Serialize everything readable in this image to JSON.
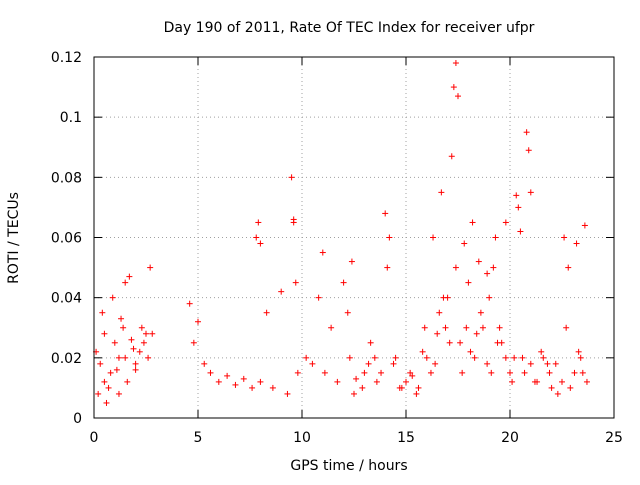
{
  "chart_data": {
    "type": "scatter",
    "title": "Day 190 of 2011, Rate Of TEC Index for receiver ufpr",
    "xlabel": "GPS time / hours",
    "ylabel": "ROTI / TECUs",
    "xlim": [
      0,
      25
    ],
    "ylim": [
      0,
      0.12
    ],
    "x_ticks": [
      0,
      5,
      10,
      15,
      20,
      25
    ],
    "x_tick_labels": [
      "0",
      "5",
      "10",
      "15",
      "20",
      "25"
    ],
    "y_ticks": [
      0,
      0.02,
      0.04,
      0.06,
      0.08,
      0.1,
      0.12
    ],
    "y_tick_labels": [
      "0",
      "0.02",
      "0.04",
      "0.06",
      "0.08",
      "0.1",
      "0.12"
    ],
    "grid": true,
    "marker": "+",
    "series": [
      {
        "name": "ROTI",
        "color": "#ff0000",
        "x": [
          0.1,
          0.3,
          0.5,
          0.8,
          1.0,
          1.2,
          1.4,
          1.6,
          1.8,
          2.0,
          2.2,
          2.4,
          2.6,
          0.2,
          0.4,
          0.7,
          0.9,
          1.1,
          1.5,
          1.9,
          2.3,
          2.7,
          0.6,
          1.3,
          1.7,
          2.5,
          4.6,
          4.8,
          5.0,
          5.3,
          5.6,
          6.0,
          6.4,
          6.8,
          7.2,
          7.6,
          7.8,
          8.0,
          8.3,
          8.6,
          9.0,
          9.3,
          9.6,
          9.8,
          10.2,
          10.5,
          10.8,
          11.1,
          11.4,
          11.7,
          12.0,
          12.3,
          12.6,
          12.9,
          13.2,
          13.5,
          13.8,
          14.1,
          14.4,
          14.7,
          15.0,
          15.3,
          15.6,
          15.9,
          16.2,
          16.5,
          16.8,
          17.1,
          17.4,
          17.7,
          18.0,
          18.3,
          18.6,
          18.9,
          19.2,
          19.5,
          19.8,
          20.1,
          20.4,
          20.7,
          21.0,
          21.3,
          21.6,
          21.9,
          22.2,
          22.5,
          22.8,
          23.1,
          23.4,
          23.7,
          7.9,
          8.0,
          9.5,
          9.6,
          9.7,
          11.0,
          12.4,
          14.0,
          14.2,
          16.3,
          16.7,
          17.2,
          17.3,
          17.4,
          17.5,
          17.8,
          18.2,
          18.5,
          18.9,
          19.3,
          19.8,
          20.3,
          20.5,
          20.8,
          20.9,
          21.0,
          22.6,
          23.2,
          23.6,
          0.5,
          1.2,
          1.5,
          2.0,
          2.8,
          12.5,
          13.0,
          13.6,
          14.8,
          15.5,
          16.0,
          16.4,
          16.9,
          17.6,
          18.1,
          18.7,
          19.1,
          19.6,
          20.0,
          20.6,
          21.2,
          21.8,
          22.3,
          22.9,
          23.5,
          12.2,
          13.3,
          14.5,
          15.2,
          15.8,
          16.6,
          17.0,
          17.9,
          18.4,
          19.0,
          19.4,
          20.2,
          21.5,
          22.0,
          22.7,
          23.3
        ],
        "y": [
          0.022,
          0.018,
          0.028,
          0.015,
          0.025,
          0.02,
          0.03,
          0.012,
          0.026,
          0.018,
          0.022,
          0.025,
          0.02,
          0.008,
          0.035,
          0.01,
          0.04,
          0.016,
          0.045,
          0.023,
          0.03,
          0.05,
          0.005,
          0.033,
          0.047,
          0.028,
          0.038,
          0.025,
          0.032,
          0.018,
          0.015,
          0.012,
          0.014,
          0.011,
          0.013,
          0.01,
          0.06,
          0.012,
          0.035,
          0.01,
          0.042,
          0.008,
          0.065,
          0.015,
          0.02,
          0.018,
          0.04,
          0.015,
          0.03,
          0.012,
          0.045,
          0.02,
          0.013,
          0.01,
          0.018,
          0.02,
          0.015,
          0.05,
          0.018,
          0.01,
          0.012,
          0.014,
          0.01,
          0.03,
          0.015,
          0.028,
          0.04,
          0.025,
          0.05,
          0.015,
          0.045,
          0.02,
          0.035,
          0.018,
          0.05,
          0.03,
          0.02,
          0.012,
          0.07,
          0.015,
          0.018,
          0.012,
          0.02,
          0.015,
          0.018,
          0.012,
          0.05,
          0.015,
          0.02,
          0.012,
          0.065,
          0.058,
          0.08,
          0.066,
          0.045,
          0.055,
          0.052,
          0.068,
          0.06,
          0.06,
          0.075,
          0.087,
          0.11,
          0.118,
          0.107,
          0.058,
          0.065,
          0.052,
          0.048,
          0.06,
          0.065,
          0.074,
          0.062,
          0.095,
          0.089,
          0.075,
          0.06,
          0.058,
          0.064,
          0.012,
          0.008,
          0.02,
          0.016,
          0.028,
          0.008,
          0.015,
          0.012,
          0.01,
          0.008,
          0.02,
          0.018,
          0.03,
          0.025,
          0.022,
          0.03,
          0.015,
          0.025,
          0.015,
          0.02,
          0.012,
          0.018,
          0.008,
          0.01,
          0.015,
          0.035,
          0.025,
          0.02,
          0.015,
          0.022,
          0.035,
          0.04,
          0.03,
          0.028,
          0.04,
          0.025,
          0.02,
          0.022,
          0.01,
          0.03,
          0.022
        ]
      }
    ]
  }
}
